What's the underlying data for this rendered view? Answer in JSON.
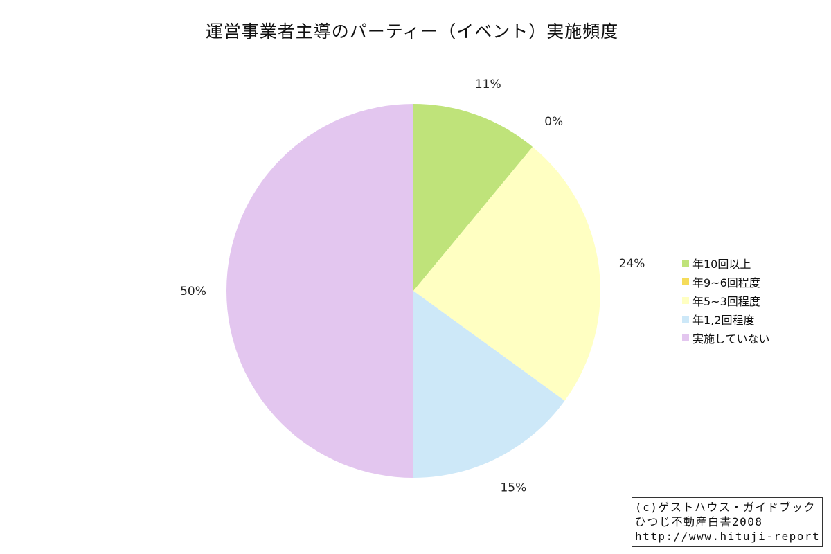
{
  "chart_data": {
    "type": "pie",
    "title": "運営事業者主導のパーティー（イベント）実施頻度",
    "legend_position": "right",
    "slices": [
      {
        "label": "年10回以上",
        "value": 11,
        "value_label": "11%",
        "color": "#bfe37a"
      },
      {
        "label": "年9~6回程度",
        "value": 0,
        "value_label": "0%",
        "color": "#f5dc5a"
      },
      {
        "label": "年5~3回程度",
        "value": 24,
        "value_label": "24%",
        "color": "#ffffc2"
      },
      {
        "label": "年1,2回程度",
        "value": 15,
        "value_label": "15%",
        "color": "#cde8f8"
      },
      {
        "label": "実施していない",
        "value": 50,
        "value_label": "50%",
        "color": "#e3c6ef"
      }
    ]
  },
  "credit": {
    "line1": "(c)ゲストハウス・ガイドブック",
    "line2": "ひつじ不動産白書2008",
    "line3": "http://www.hituji-report.jp/"
  }
}
